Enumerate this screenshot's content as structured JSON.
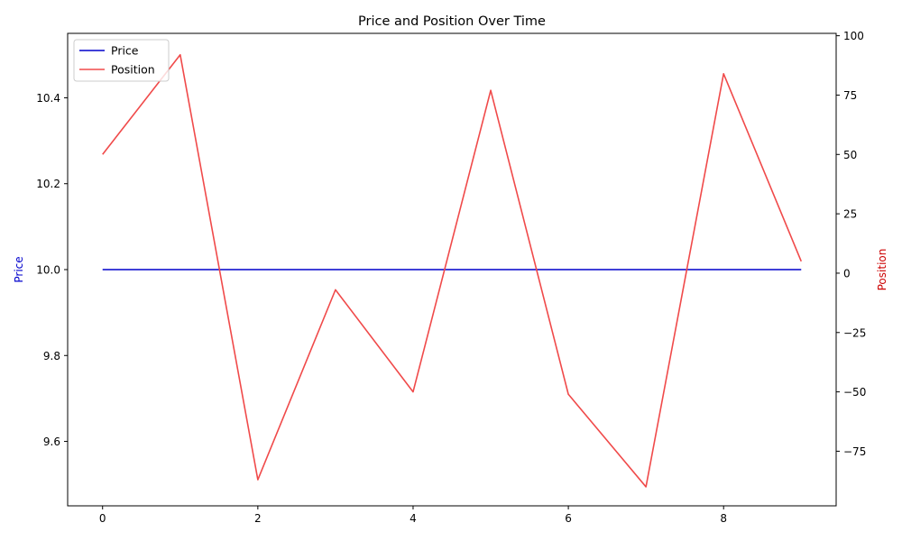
{
  "chart_data": {
    "type": "line",
    "title": "Price and Position Over Time",
    "xlabel": "",
    "x": [
      0,
      1,
      2,
      3,
      4,
      5,
      6,
      7,
      8,
      9
    ],
    "xticks": [
      "0",
      "2",
      "4",
      "6",
      "8"
    ],
    "xlim": [
      -0.45,
      9.45
    ],
    "left_axis": {
      "label": "Price",
      "color": "#0000cc",
      "ylim": [
        9.45,
        10.55
      ],
      "ticks": [
        "9.6",
        "9.8",
        "10.0",
        "10.2",
        "10.4"
      ]
    },
    "right_axis": {
      "label": "Position",
      "color": "#cc0000",
      "ylim": [
        -98,
        101
      ],
      "ticks": [
        "−75",
        "−50",
        "−25",
        "0",
        "25",
        "50",
        "75",
        "100"
      ]
    },
    "series": [
      {
        "name": "Price",
        "axis": "left",
        "color": "#0000cc",
        "values": [
          10.0,
          10.0,
          10.0,
          10.0,
          10.0,
          10.0,
          10.0,
          10.0,
          10.0,
          10.0
        ]
      },
      {
        "name": "Position",
        "axis": "right",
        "color": "#f04a4a",
        "values": [
          50,
          92,
          -87,
          -7,
          -50,
          77,
          -51,
          -90,
          84,
          5
        ]
      }
    ],
    "legend": {
      "position": "top-left",
      "entries": [
        "Price",
        "Position"
      ]
    },
    "grid": false
  }
}
